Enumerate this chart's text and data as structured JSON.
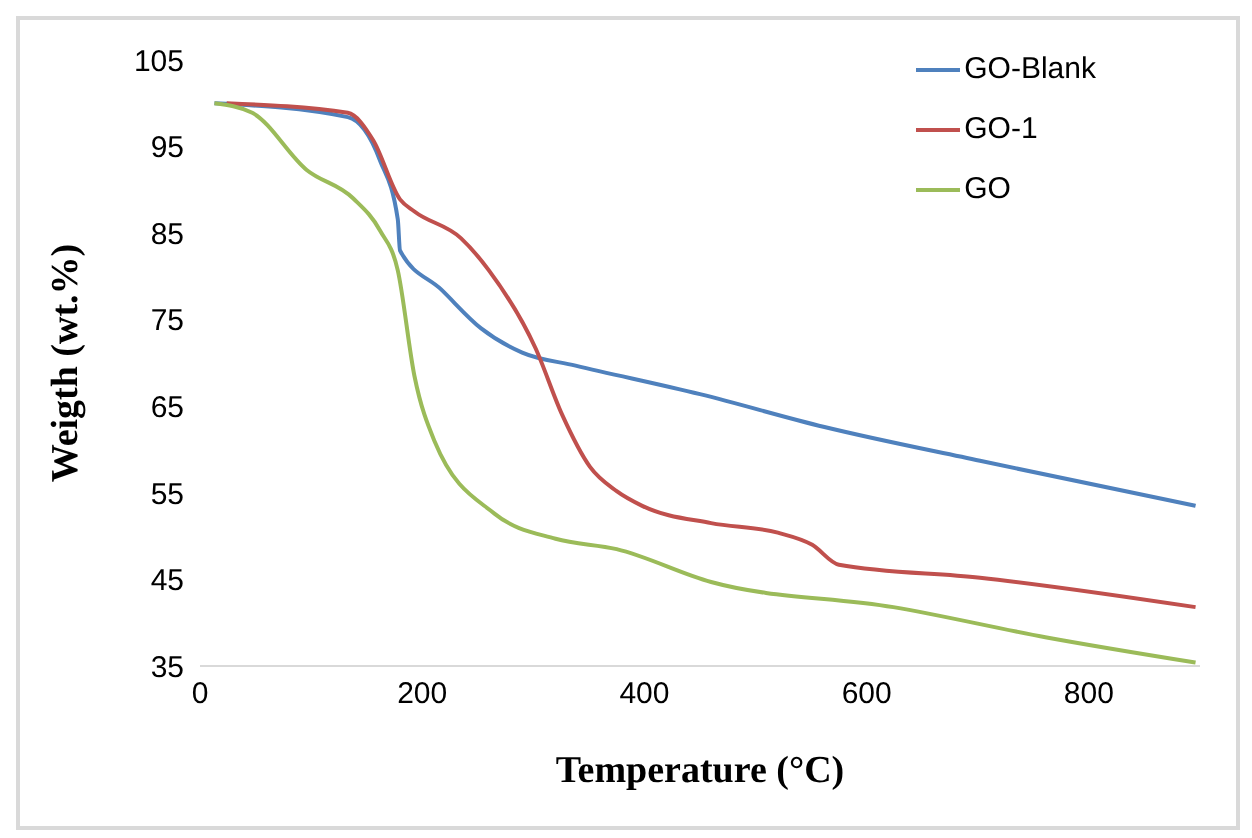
{
  "chart_data": {
    "type": "line",
    "xlabel": "Temperature (°C)",
    "ylabel": "Weigth (wt.%)",
    "xlim": [
      0,
      900
    ],
    "xticks": [
      0,
      200,
      400,
      600,
      800
    ],
    "ylim": [
      35,
      105
    ],
    "yticks": [
      35,
      45,
      55,
      65,
      75,
      85,
      95,
      105
    ],
    "grid": false,
    "legend": "top right",
    "marker": "none",
    "line_style": "solid",
    "series": [
      {
        "name": "GO-Blank",
        "color": "#4f81bd",
        "x": [
          13,
          133,
          162,
          178,
          180,
          217,
          253,
          290,
          338,
          450,
          562,
          702,
          896
        ],
        "values": [
          100,
          98.4,
          93.4,
          86.6,
          83,
          78.5,
          74,
          71.2,
          69.7,
          66.4,
          62.6,
          58.7,
          53.5
        ]
      },
      {
        "name": "GO-1",
        "color": "#c0504d",
        "x": [
          24,
          133,
          156,
          180,
          193,
          235,
          260,
          302,
          326,
          351,
          375,
          398,
          460,
          520,
          551,
          575,
          702,
          896
        ],
        "values": [
          100,
          98.9,
          95.7,
          88.9,
          87.5,
          84.4,
          80.7,
          71.7,
          64,
          58,
          55.2,
          53.5,
          51.5,
          50.4,
          49,
          46.7,
          45.2,
          41.8
        ]
      },
      {
        "name": "GO",
        "color": "#9bbb59",
        "x": [
          13,
          47,
          96,
          138,
          162,
          178,
          193,
          211,
          265,
          320,
          375,
          460,
          624,
          762,
          896
        ],
        "values": [
          100,
          98.9,
          92.3,
          89,
          85.3,
          80.7,
          68.5,
          61,
          52.6,
          49.7,
          48.5,
          44.7,
          41.8,
          38.3,
          35.4
        ]
      }
    ]
  }
}
